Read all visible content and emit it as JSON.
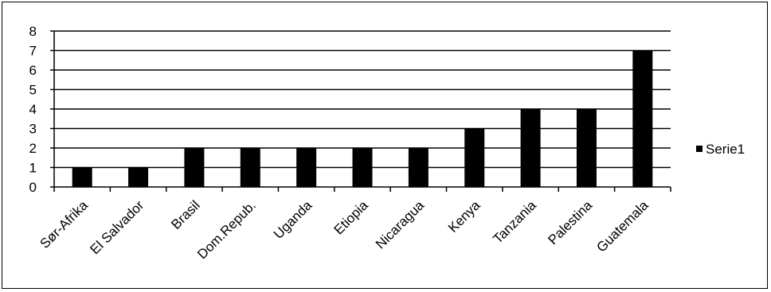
{
  "chart_data": {
    "type": "bar",
    "categories": [
      "Sør-Afrika",
      "El Salvador",
      "Brasil",
      "Dom.Repub.",
      "Uganda",
      "Etiopia",
      "Nicaragua",
      "Kenya",
      "Tanzania",
      "Palestina",
      "Guatemala"
    ],
    "series": [
      {
        "name": "Serie1",
        "values": [
          1,
          1,
          2,
          2,
          2,
          2,
          2,
          3,
          4,
          4,
          7
        ],
        "color": "#000000"
      }
    ],
    "ylim": [
      0,
      8
    ],
    "yticks": [
      "0",
      "1",
      "2",
      "3",
      "4",
      "5",
      "6",
      "7",
      "8"
    ],
    "grid": true,
    "legend_position": "right"
  }
}
